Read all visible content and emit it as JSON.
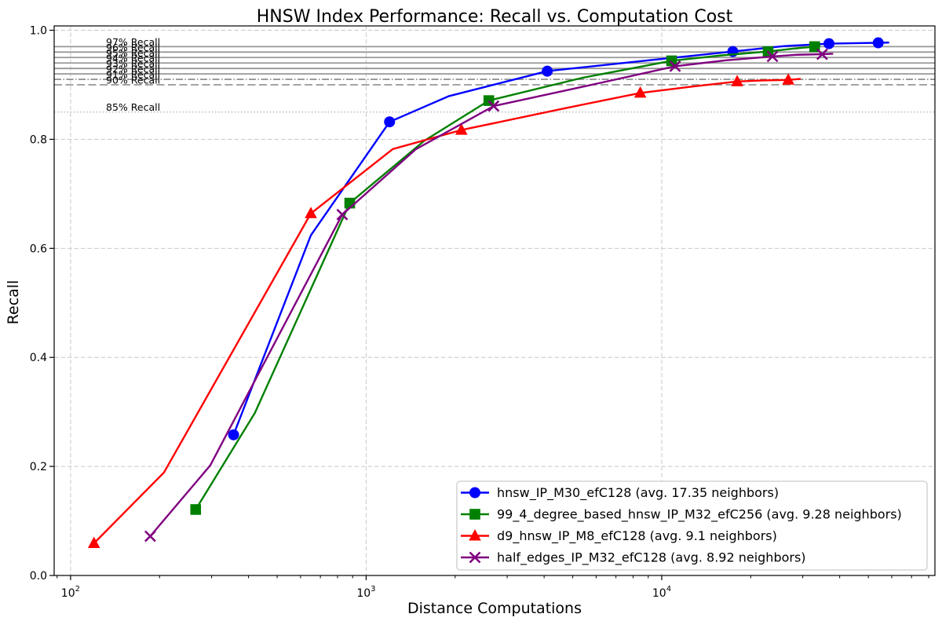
{
  "title": "HNSW Index Performance: Recall vs. Computation Cost",
  "axes": {
    "xlabel": "Distance Computations",
    "ylabel": "Recall",
    "x_scale": "log",
    "xlim": [
      88,
      84000
    ],
    "ylim": [
      0,
      1.008
    ],
    "grid": true,
    "x_ticks": [
      {
        "value": 100,
        "base": "10",
        "exp": "2"
      },
      {
        "value": 1000,
        "base": "10",
        "exp": "3"
      },
      {
        "value": 10000,
        "base": "10",
        "exp": "4"
      }
    ],
    "y_ticks": [
      {
        "value": 0.0,
        "label": "0.0"
      },
      {
        "value": 0.2,
        "label": "0.2"
      },
      {
        "value": 0.4,
        "label": "0.4"
      },
      {
        "value": 0.6,
        "label": "0.6"
      },
      {
        "value": 0.8,
        "label": "0.8"
      },
      {
        "value": 1.0,
        "label": "1.0"
      }
    ]
  },
  "reference_lines": [
    {
      "label": "97% Recall",
      "value": 0.97,
      "style": "solid"
    },
    {
      "label": "96% Recall",
      "value": 0.96,
      "style": "solid"
    },
    {
      "label": "95% Recall",
      "value": 0.95,
      "style": "solid"
    },
    {
      "label": "94% Recall",
      "value": 0.94,
      "style": "solid"
    },
    {
      "label": "93% Recall",
      "value": 0.93,
      "style": "solid"
    },
    {
      "label": "92% Recall",
      "value": 0.92,
      "style": "solid"
    },
    {
      "label": "91% Recall",
      "value": 0.91,
      "style": "dashdot"
    },
    {
      "label": "90% Recall",
      "value": 0.9,
      "style": "dashed"
    },
    {
      "label": "85% Recall",
      "value": 0.85,
      "style": "dotted"
    }
  ],
  "legend": {
    "position": "lower right",
    "entries": [
      {
        "label": "hnsw_IP_M30_efC128 (avg. 17.35 neighbors)",
        "color": "#0000ff",
        "marker": "circle"
      },
      {
        "label": "99_4_degree_based_hnsw_IP_M32_efC256 (avg. 9.28 neighbors)",
        "color": "#008000",
        "marker": "square"
      },
      {
        "label": "d9_hnsw_IP_M8_efC128 (avg. 9.1 neighbors)",
        "color": "#ff0000",
        "marker": "triangle"
      },
      {
        "label": "half_edges_IP_M32_efC128 (avg. 8.92 neighbors)",
        "color": "#800080",
        "marker": "x"
      }
    ]
  },
  "chart_data": {
    "type": "line",
    "title": "HNSW Index Performance: Recall vs. Computation Cost",
    "xlabel": "Distance Computations",
    "ylabel": "Recall",
    "x_scale": "log",
    "xlim": [
      88,
      84000
    ],
    "ylim": [
      0,
      1.008
    ],
    "point_format": "[distance_computations, recall, has_visible_marker]",
    "series": [
      {
        "name": "hnsw_IP_M30_efC128 (avg. 17.35 neighbors)",
        "color": "#0000ff",
        "marker": "circle",
        "points": [
          [
            356,
            0.258,
            1
          ],
          [
            650,
            0.624,
            0
          ],
          [
            1200,
            0.832,
            1
          ],
          [
            1900,
            0.879,
            0
          ],
          [
            4100,
            0.925,
            1
          ],
          [
            8400,
            0.943,
            0
          ],
          [
            17400,
            0.961,
            1
          ],
          [
            26000,
            0.971,
            0
          ],
          [
            36800,
            0.9755,
            1
          ],
          [
            46000,
            0.9765,
            0
          ],
          [
            54000,
            0.977,
            1
          ],
          [
            58800,
            0.9775,
            0
          ]
        ]
      },
      {
        "name": "99_4_degree_based_hnsw_IP_M32_efC256 (avg. 9.28 neighbors)",
        "color": "#008000",
        "marker": "square",
        "points": [
          [
            265,
            0.121,
            1
          ],
          [
            420,
            0.298,
            0
          ],
          [
            880,
            0.683,
            1
          ],
          [
            1570,
            0.797,
            0
          ],
          [
            2600,
            0.871,
            1
          ],
          [
            5400,
            0.913,
            0
          ],
          [
            10800,
            0.944,
            1
          ],
          [
            16000,
            0.954,
            0
          ],
          [
            22900,
            0.961,
            1
          ],
          [
            27500,
            0.966,
            0
          ],
          [
            32900,
            0.97,
            1
          ],
          [
            34400,
            0.971,
            0
          ]
        ]
      },
      {
        "name": "d9_hnsw_IP_M8_efC128 (avg. 9.1 neighbors)",
        "color": "#ff0000",
        "marker": "triangle",
        "points": [
          [
            120,
            0.059,
            1
          ],
          [
            207,
            0.189,
            0
          ],
          [
            650,
            0.664,
            1
          ],
          [
            1230,
            0.782,
            0
          ],
          [
            2100,
            0.817,
            1
          ],
          [
            4700,
            0.857,
            0
          ],
          [
            8460,
            0.885,
            1
          ],
          [
            12800,
            0.897,
            0
          ],
          [
            18000,
            0.906,
            1
          ],
          [
            22000,
            0.908,
            0
          ],
          [
            26800,
            0.909,
            1
          ],
          [
            29500,
            0.911,
            0
          ]
        ]
      },
      {
        "name": "half_edges_IP_M32_efC128 (avg. 8.92 neighbors)",
        "color": "#800080",
        "marker": "x",
        "points": [
          [
            186,
            0.072,
            1
          ],
          [
            297,
            0.202,
            0
          ],
          [
            830,
            0.662,
            1
          ],
          [
            1475,
            0.782,
            0
          ],
          [
            2700,
            0.861,
            1
          ],
          [
            5470,
            0.897,
            0
          ],
          [
            11100,
            0.934,
            1
          ],
          [
            16500,
            0.945,
            0
          ],
          [
            23700,
            0.952,
            1
          ],
          [
            28500,
            0.955,
            0
          ],
          [
            34900,
            0.956,
            1
          ],
          [
            38000,
            0.957,
            0
          ]
        ]
      }
    ]
  },
  "colors": {
    "background": "#ffffff",
    "spine": "#000000",
    "grid": "#c9c9c9",
    "reference_gray": "#979797",
    "reference_dotted": "#b5b5b5",
    "legend_border": "#cccccc"
  }
}
